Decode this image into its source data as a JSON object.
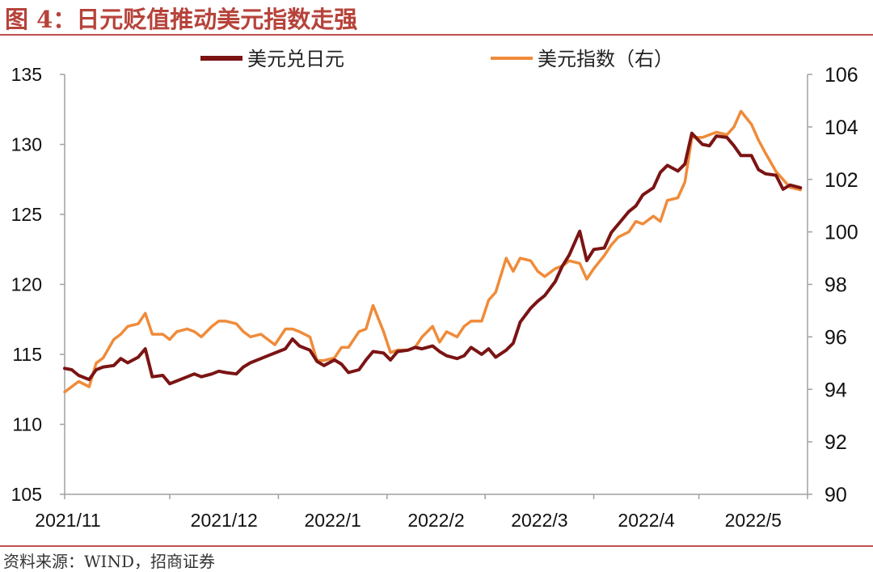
{
  "header": {
    "title": "图 4：日元贬值推动美元指数走强"
  },
  "footer": {
    "source": "资料来源：WIND，招商证券"
  },
  "colors": {
    "usdjpy": "#7b1414",
    "dxy": "#ef8b3a",
    "title": "#b6433a",
    "rule": "#c0504d"
  },
  "chart_data": {
    "type": "line",
    "title": "",
    "xlabel": "",
    "ylabel": "",
    "x_ticks": [
      "2021/11",
      "2021/12",
      "2022/1",
      "2022/2",
      "2022/3",
      "2022/4",
      "2022/5"
    ],
    "ylim_left": [
      105,
      135
    ],
    "yticks_left": [
      "105",
      "110",
      "115",
      "120",
      "125",
      "130",
      "135"
    ],
    "ylim_right": [
      90,
      106
    ],
    "yticks_right": [
      "90",
      "92",
      "94",
      "96",
      "98",
      "100",
      "102",
      "104",
      "106"
    ],
    "grid": false,
    "legend_position": "top",
    "series": [
      {
        "name": "美元兑日元",
        "axis": "left",
        "x": [
          "2021-11-01",
          "2021-11-03",
          "2021-11-05",
          "2021-11-08",
          "2021-11-10",
          "2021-11-12",
          "2021-11-15",
          "2021-11-17",
          "2021-11-19",
          "2021-11-22",
          "2021-11-24",
          "2021-11-26",
          "2021-11-29",
          "2021-12-01",
          "2021-12-03",
          "2021-12-06",
          "2021-12-08",
          "2021-12-10",
          "2021-12-13",
          "2021-12-15",
          "2021-12-17",
          "2021-12-20",
          "2021-12-22",
          "2021-12-24",
          "2021-12-27",
          "2021-12-29",
          "2021-12-31",
          "2022-01-03",
          "2022-01-05",
          "2022-01-07",
          "2022-01-10",
          "2022-01-12",
          "2022-01-14",
          "2022-01-17",
          "2022-01-19",
          "2022-01-21",
          "2022-01-24",
          "2022-01-26",
          "2022-01-28",
          "2022-01-31",
          "2022-02-02",
          "2022-02-04",
          "2022-02-07",
          "2022-02-09",
          "2022-02-11",
          "2022-02-14",
          "2022-02-16",
          "2022-02-18",
          "2022-02-21",
          "2022-02-23",
          "2022-02-25",
          "2022-02-28",
          "2022-03-02",
          "2022-03-04",
          "2022-03-07",
          "2022-03-09",
          "2022-03-11",
          "2022-03-14",
          "2022-03-16",
          "2022-03-18",
          "2022-03-21",
          "2022-03-23",
          "2022-03-25",
          "2022-03-28",
          "2022-03-30",
          "2022-04-01",
          "2022-04-04",
          "2022-04-06",
          "2022-04-08",
          "2022-04-11",
          "2022-04-13",
          "2022-04-15",
          "2022-04-18",
          "2022-04-20",
          "2022-04-22",
          "2022-04-25",
          "2022-04-27",
          "2022-04-29",
          "2022-05-02",
          "2022-05-04",
          "2022-05-06",
          "2022-05-09",
          "2022-05-11",
          "2022-05-13",
          "2022-05-16",
          "2022-05-18",
          "2022-05-20",
          "2022-05-23",
          "2022-05-25",
          "2022-05-27",
          "2022-05-30"
        ],
        "values": [
          114.0,
          113.9,
          113.5,
          113.2,
          113.9,
          114.1,
          114.2,
          114.7,
          114.4,
          114.8,
          115.4,
          113.4,
          113.5,
          112.9,
          113.1,
          113.4,
          113.6,
          113.4,
          113.6,
          113.8,
          113.7,
          113.6,
          114.1,
          114.4,
          114.7,
          114.9,
          115.1,
          115.4,
          116.1,
          115.6,
          115.3,
          114.5,
          114.2,
          114.6,
          114.3,
          113.7,
          113.9,
          114.6,
          115.2,
          115.1,
          114.6,
          115.2,
          115.3,
          115.5,
          115.4,
          115.6,
          115.2,
          114.9,
          114.7,
          114.9,
          115.5,
          115.0,
          115.4,
          114.8,
          115.3,
          115.8,
          117.3,
          118.3,
          118.8,
          119.2,
          120.2,
          121.3,
          122.1,
          123.8,
          121.7,
          122.5,
          122.6,
          123.7,
          124.3,
          125.2,
          125.6,
          126.4,
          126.9,
          128.0,
          128.5,
          128.1,
          128.6,
          130.8,
          130.0,
          129.9,
          130.6,
          130.5,
          129.9,
          129.2,
          129.2,
          128.2,
          127.9,
          127.8,
          126.8,
          127.1,
          126.9
        ]
      },
      {
        "name": "美元指数（右）",
        "axis": "right",
        "x": [
          "2021-11-01",
          "2021-11-03",
          "2021-11-05",
          "2021-11-08",
          "2021-11-10",
          "2021-11-12",
          "2021-11-15",
          "2021-11-17",
          "2021-11-19",
          "2021-11-22",
          "2021-11-24",
          "2021-11-26",
          "2021-11-29",
          "2021-12-01",
          "2021-12-03",
          "2021-12-06",
          "2021-12-08",
          "2021-12-10",
          "2021-12-13",
          "2021-12-15",
          "2021-12-17",
          "2021-12-20",
          "2021-12-22",
          "2021-12-24",
          "2021-12-27",
          "2021-12-29",
          "2021-12-31",
          "2022-01-03",
          "2022-01-05",
          "2022-01-07",
          "2022-01-10",
          "2022-01-12",
          "2022-01-14",
          "2022-01-17",
          "2022-01-19",
          "2022-01-21",
          "2022-01-24",
          "2022-01-26",
          "2022-01-28",
          "2022-01-31",
          "2022-02-02",
          "2022-02-04",
          "2022-02-07",
          "2022-02-09",
          "2022-02-11",
          "2022-02-14",
          "2022-02-16",
          "2022-02-18",
          "2022-02-21",
          "2022-02-23",
          "2022-02-25",
          "2022-02-28",
          "2022-03-02",
          "2022-03-04",
          "2022-03-07",
          "2022-03-09",
          "2022-03-11",
          "2022-03-14",
          "2022-03-16",
          "2022-03-18",
          "2022-03-21",
          "2022-03-23",
          "2022-03-25",
          "2022-03-28",
          "2022-03-30",
          "2022-04-01",
          "2022-04-04",
          "2022-04-06",
          "2022-04-08",
          "2022-04-11",
          "2022-04-13",
          "2022-04-15",
          "2022-04-18",
          "2022-04-20",
          "2022-04-22",
          "2022-04-25",
          "2022-04-27",
          "2022-04-29",
          "2022-05-02",
          "2022-05-04",
          "2022-05-06",
          "2022-05-09",
          "2022-05-11",
          "2022-05-13",
          "2022-05-16",
          "2022-05-18",
          "2022-05-20",
          "2022-05-23",
          "2022-05-25",
          "2022-05-27",
          "2022-05-30"
        ],
        "values": [
          93.9,
          94.1,
          94.3,
          94.1,
          95.0,
          95.2,
          95.9,
          96.1,
          96.4,
          96.5,
          96.9,
          96.1,
          96.1,
          95.9,
          96.2,
          96.3,
          96.2,
          96.0,
          96.4,
          96.6,
          96.6,
          96.5,
          96.2,
          96.0,
          96.1,
          95.9,
          95.7,
          96.3,
          96.3,
          96.2,
          96.0,
          95.1,
          95.1,
          95.2,
          95.6,
          95.6,
          96.2,
          96.3,
          97.2,
          96.2,
          95.4,
          95.5,
          95.5,
          95.6,
          96.0,
          96.4,
          95.8,
          96.2,
          96.0,
          96.4,
          96.6,
          96.6,
          97.4,
          97.7,
          99.0,
          98.5,
          99.0,
          98.9,
          98.5,
          98.3,
          98.6,
          98.7,
          98.9,
          98.8,
          98.2,
          98.6,
          99.1,
          99.5,
          99.8,
          100.0,
          100.4,
          100.3,
          100.6,
          100.4,
          101.2,
          101.3,
          101.9,
          103.6,
          103.6,
          103.7,
          103.8,
          103.7,
          104.0,
          104.6,
          104.1,
          103.5,
          103.0,
          102.3,
          102.0,
          101.7,
          101.6
        ]
      }
    ]
  }
}
